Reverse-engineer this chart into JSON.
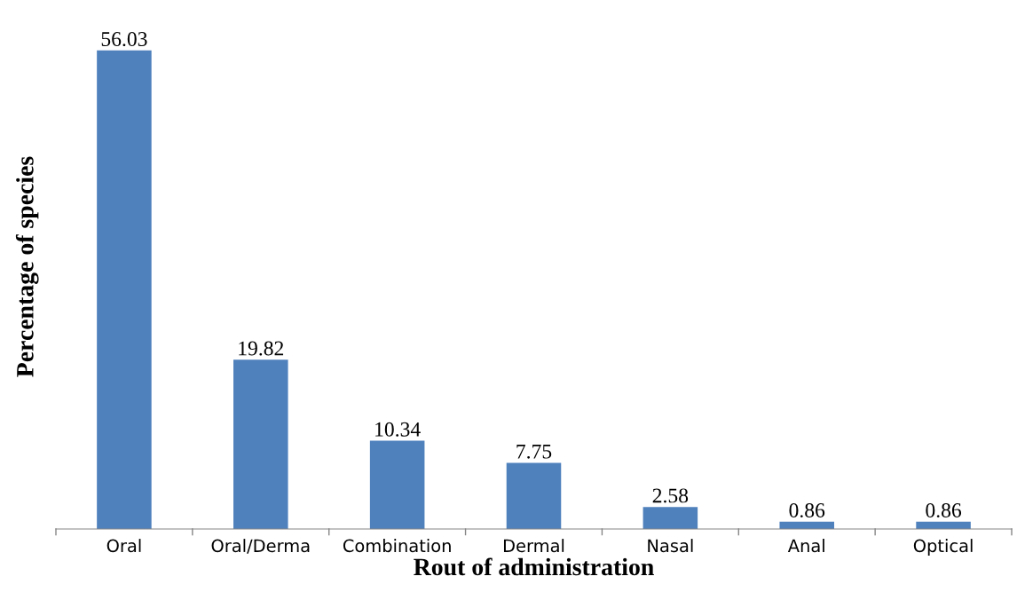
{
  "chart_data": {
    "type": "bar",
    "xlabel": "Rout of administration",
    "ylabel": "Percentage of species",
    "categories": [
      "Oral",
      "Oral/Derma",
      "Combination",
      "Dermal",
      "Nasal",
      "Anal",
      "Optical"
    ],
    "values": [
      56.03,
      19.82,
      10.34,
      7.75,
      2.58,
      0.86,
      0.86
    ],
    "color": "#4f81bd",
    "data_labels": true,
    "grid": false,
    "legend": false
  }
}
